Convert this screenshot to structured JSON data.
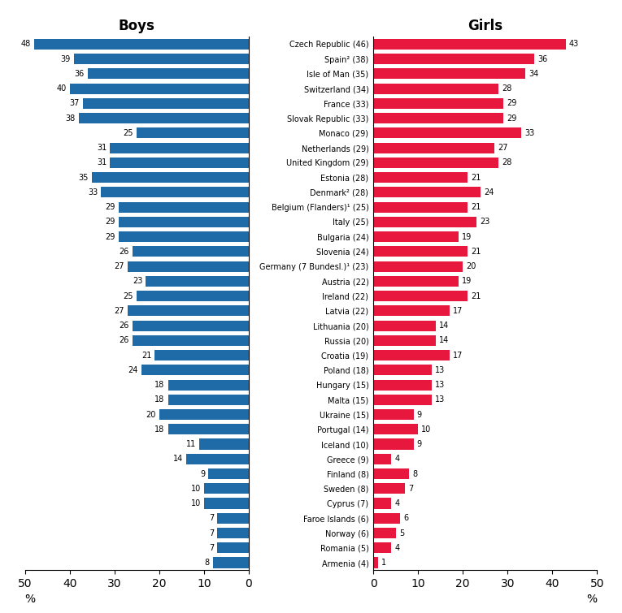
{
  "chart_data": [
    {
      "type": "bar",
      "orientation": "horizontal",
      "title": "Boys",
      "xlabel": "%",
      "categories": [
        "Czech Republic (46)",
        "Spain² (38)",
        "Isle of Man (35)",
        "Switzerland (34)",
        "France (33)",
        "Slovak Republic (33)",
        "Monaco (29)",
        "Netherlands (29)",
        "United Kingdom (29)",
        "Estonia (28)",
        "Denmark² (28)",
        "Belgium (Flanders)¹ (25)",
        "Italy (25)",
        "Bulgaria (24)",
        "Slovenia (24)",
        "Germany (7 Bundesl.)¹ (23)",
        "Austria (22)",
        "Ireland (22)",
        "Latvia (22)",
        "Lithuania (20)",
        "Russia (20)",
        "Croatia (19)",
        "Poland (18)",
        "Hungary (15)",
        "Malta (15)",
        "Ukraine (15)",
        "Portugal (14)",
        "Iceland (10)",
        "Greece (9)",
        "Finland (8)",
        "Sweden (8)",
        "Cyprus (7)",
        "Faroe Islands (6)",
        "Norway (6)",
        "Romania (5)",
        "Armenia (4)"
      ],
      "values": [
        48,
        39,
        36,
        40,
        37,
        38,
        25,
        31,
        31,
        35,
        33,
        29,
        29,
        29,
        26,
        27,
        23,
        25,
        27,
        26,
        26,
        21,
        24,
        18,
        18,
        20,
        18,
        11,
        14,
        9,
        10,
        10,
        7,
        7,
        7,
        8
      ],
      "color": "#1F6BA8",
      "xlim": [
        50,
        0
      ],
      "xticks": [
        0,
        10,
        20,
        30,
        40,
        50
      ],
      "data_labels": true,
      "tick_labels": "x",
      "grid": false
    },
    {
      "type": "bar",
      "orientation": "horizontal",
      "title": "Girls",
      "xlabel": "%",
      "categories": [
        "Czech Republic (46)",
        "Spain² (38)",
        "Isle of Man (35)",
        "Switzerland (34)",
        "France (33)",
        "Slovak Republic (33)",
        "Monaco (29)",
        "Netherlands (29)",
        "United Kingdom (29)",
        "Estonia (28)",
        "Denmark² (28)",
        "Belgium (Flanders)¹ (25)",
        "Italy (25)",
        "Bulgaria (24)",
        "Slovenia (24)",
        "Germany (7 Bundesl.)¹ (23)",
        "Austria (22)",
        "Ireland (22)",
        "Latvia (22)",
        "Lithuania (20)",
        "Russia (20)",
        "Croatia (19)",
        "Poland (18)",
        "Hungary (15)",
        "Malta (15)",
        "Ukraine (15)",
        "Portugal (14)",
        "Iceland (10)",
        "Greece (9)",
        "Finland (8)",
        "Sweden (8)",
        "Cyprus (7)",
        "Faroe Islands (6)",
        "Norway (6)",
        "Romania (5)",
        "Armenia (4)"
      ],
      "values": [
        43,
        36,
        34,
        28,
        29,
        29,
        33,
        27,
        28,
        21,
        24,
        21,
        23,
        19,
        21,
        20,
        19,
        21,
        17,
        14,
        14,
        17,
        13,
        13,
        13,
        9,
        10,
        9,
        4,
        8,
        7,
        4,
        6,
        5,
        4,
        1
      ],
      "color": "#E8173D",
      "xlim": [
        0,
        50
      ],
      "xticks": [
        0,
        10,
        20,
        30,
        40,
        50
      ],
      "data_labels": true,
      "tick_labels": true,
      "grid": false
    }
  ]
}
